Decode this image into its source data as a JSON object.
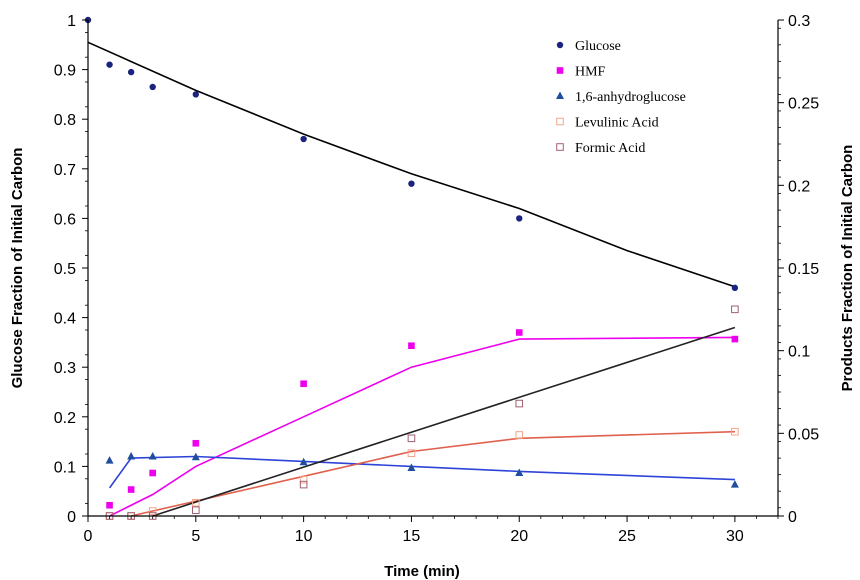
{
  "chart_data": {
    "type": "scatter",
    "xlabel": "Time (min)",
    "ylabel_left": "Glucose Fraction of Initial Carbon",
    "ylabel_right": "Products Fraction of Initial Carbon",
    "xlim": [
      0,
      32
    ],
    "ylim_left": [
      0,
      1
    ],
    "ylim_right": [
      0,
      0.3
    ],
    "x_ticks": [
      0,
      5,
      10,
      15,
      20,
      25,
      30
    ],
    "y_left_ticks": [
      "0",
      "0.1",
      "0.2",
      "0.3",
      "0.4",
      "0.5",
      "0.6",
      "0.7",
      "0.8",
      "0.9",
      "1"
    ],
    "y_right_ticks": [
      "0",
      "0.05",
      "0.1",
      "0.15",
      "0.2",
      "0.25",
      "0.3"
    ],
    "grid": false,
    "legend_position": "top-right",
    "series": [
      {
        "name": "Glucose",
        "axis": "left",
        "marker": "circle",
        "color": "#1a237e",
        "points": [
          [
            0,
            1.0
          ],
          [
            1,
            0.91
          ],
          [
            2,
            0.895
          ],
          [
            3,
            0.865
          ],
          [
            5,
            0.85
          ],
          [
            10,
            0.76
          ],
          [
            15,
            0.67
          ],
          [
            20,
            0.6
          ],
          [
            30,
            0.46
          ]
        ],
        "fit": {
          "color": "#000000",
          "points": [
            [
              0,
              0.955
            ],
            [
              5,
              0.858
            ],
            [
              10,
              0.77
            ],
            [
              15,
              0.69
            ],
            [
              20,
              0.62
            ],
            [
              25,
              0.535
            ],
            [
              30,
              0.462
            ]
          ]
        }
      },
      {
        "name": "HMF",
        "axis": "right",
        "marker": "square",
        "color": "#ee00ee",
        "points": [
          [
            1,
            0.0065
          ],
          [
            2,
            0.016
          ],
          [
            3,
            0.026
          ],
          [
            5,
            0.044
          ],
          [
            10,
            0.08
          ],
          [
            15,
            0.103
          ],
          [
            20,
            0.111
          ],
          [
            30,
            0.107
          ]
        ],
        "fit": {
          "color": "#ee00ee",
          "points": [
            [
              1,
              0.0
            ],
            [
              3,
              0.013
            ],
            [
              5,
              0.03
            ],
            [
              10,
              0.06
            ],
            [
              15,
              0.09
            ],
            [
              20,
              0.107
            ],
            [
              30,
              0.108
            ]
          ]
        }
      },
      {
        "name": "1,6-anhydroglucose",
        "axis": "right",
        "marker": "triangle",
        "color": "#1f4e9e",
        "points": [
          [
            1,
            0.0335
          ],
          [
            2,
            0.036
          ],
          [
            3,
            0.036
          ],
          [
            5,
            0.0355
          ],
          [
            10,
            0.0325
          ],
          [
            15,
            0.029
          ],
          [
            20,
            0.026
          ],
          [
            30,
            0.019
          ]
        ],
        "fit": {
          "color": "#2e44d8",
          "points": [
            [
              1,
              0.017
            ],
            [
              2,
              0.035
            ],
            [
              5,
              0.036
            ],
            [
              10,
              0.033
            ],
            [
              15,
              0.03
            ],
            [
              20,
              0.027
            ],
            [
              30,
              0.022
            ]
          ]
        }
      },
      {
        "name": "Levulinic Acid",
        "axis": "right",
        "marker": "open-square",
        "color": "#f4a48a",
        "points": [
          [
            1,
            0.0
          ],
          [
            2,
            0.0
          ],
          [
            3,
            0.003
          ],
          [
            5,
            0.008
          ],
          [
            10,
            0.022
          ],
          [
            15,
            0.038
          ],
          [
            20,
            0.049
          ],
          [
            30,
            0.051
          ]
        ],
        "fit": {
          "color": "#e0604c",
          "points": [
            [
              2,
              0.0
            ],
            [
              5,
              0.009
            ],
            [
              10,
              0.024
            ],
            [
              15,
              0.039
            ],
            [
              20,
              0.047
            ],
            [
              30,
              0.051
            ]
          ]
        }
      },
      {
        "name": "Formic Acid",
        "axis": "right",
        "marker": "open-square",
        "color": "#a06070",
        "points": [
          [
            1,
            0.0
          ],
          [
            2,
            0.0
          ],
          [
            3,
            0.0
          ],
          [
            5,
            0.0035
          ],
          [
            10,
            0.019
          ],
          [
            15,
            0.047
          ],
          [
            20,
            0.068
          ],
          [
            30,
            0.125
          ]
        ],
        "fit": {
          "color": "#222222",
          "points": [
            [
              3,
              0.0
            ],
            [
              30,
              0.114
            ]
          ]
        }
      }
    ]
  }
}
